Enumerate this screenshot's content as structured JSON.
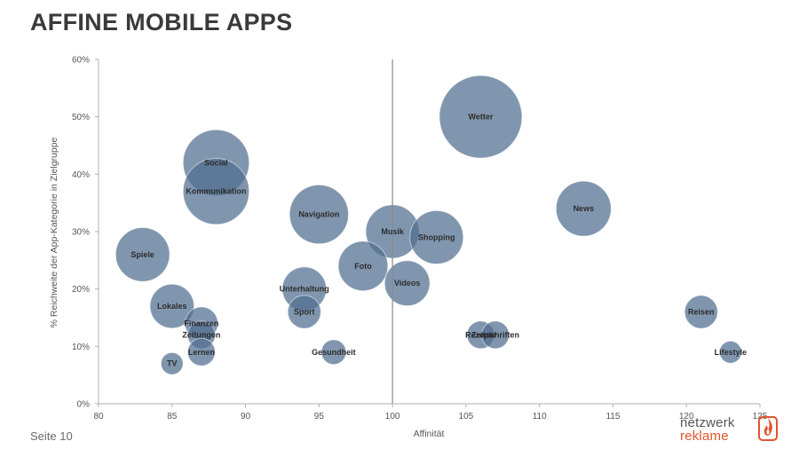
{
  "slide": {
    "title": "AFFINE MOBILE APPS",
    "page_label": "Seite 10"
  },
  "logo": {
    "line1": "netzwerk",
    "line2": "reklame",
    "color_line1": "#555555",
    "color_line2": "#e2542b",
    "icon": "flame-icon"
  },
  "colors": {
    "bubble_fill": "#4f6d8f",
    "bubble_stroke": "#ffffff",
    "axis": "#b0b0b0",
    "reference_line": "#8a8a8a",
    "label": "#2c2c2c"
  },
  "chart_data": {
    "type": "bubble",
    "title": "",
    "xlabel": "Affinität",
    "ylabel": "% Reichweite der App-Kategorie in Zielgruppe",
    "xlim": [
      80,
      125
    ],
    "ylim": [
      0,
      60
    ],
    "x_ticks": [
      "80",
      "85",
      "90",
      "95",
      "100",
      "105",
      "110",
      "115",
      "120",
      "125"
    ],
    "y_ticks": [
      "0%",
      "10%",
      "20%",
      "30%",
      "40%",
      "50%",
      "60%"
    ],
    "reference_x": 100,
    "grid": false,
    "legend": "none",
    "points": [
      {
        "label": "Wetter",
        "x": 106,
        "y": 50,
        "size": 1.5
      },
      {
        "label": "Social",
        "x": 88,
        "y": 42,
        "size": 1.2
      },
      {
        "label": "Kommunikation",
        "x": 88,
        "y": 37,
        "size": 1.2
      },
      {
        "label": "News",
        "x": 113,
        "y": 34,
        "size": 1.0
      },
      {
        "label": "Navigation",
        "x": 95,
        "y": 33,
        "size": 1.07
      },
      {
        "label": "Musik",
        "x": 100,
        "y": 30,
        "size": 0.97
      },
      {
        "label": "Shopping",
        "x": 103,
        "y": 29,
        "size": 0.97
      },
      {
        "label": "Spiele",
        "x": 83,
        "y": 26,
        "size": 0.98
      },
      {
        "label": "Foto",
        "x": 98,
        "y": 24,
        "size": 0.9
      },
      {
        "label": "Videos",
        "x": 101,
        "y": 21,
        "size": 0.82
      },
      {
        "label": "Unterhaltung",
        "x": 94,
        "y": 20,
        "size": 0.8
      },
      {
        "label": "Lokales",
        "x": 85,
        "y": 17,
        "size": 0.8
      },
      {
        "label": "Sport",
        "x": 94,
        "y": 16,
        "size": 0.6
      },
      {
        "label": "Reisen",
        "x": 121,
        "y": 16,
        "size": 0.6
      },
      {
        "label": "Finanzen",
        "x": 87,
        "y": 14,
        "size": 0.6
      },
      {
        "label": "Zeitungen",
        "x": 87,
        "y": 12,
        "size": 0.5
      },
      {
        "label": "Rezepte",
        "x": 106,
        "y": 12,
        "size": 0.5
      },
      {
        "label": "Zeitschriften",
        "x": 107,
        "y": 12,
        "size": 0.5
      },
      {
        "label": "Gesundheit",
        "x": 96,
        "y": 9,
        "size": 0.45
      },
      {
        "label": "Lifestyle",
        "x": 123,
        "y": 9,
        "size": 0.4
      },
      {
        "label": "Lernen",
        "x": 87,
        "y": 9,
        "size": 0.5
      },
      {
        "label": "TV",
        "x": 85,
        "y": 7,
        "size": 0.4
      }
    ]
  }
}
